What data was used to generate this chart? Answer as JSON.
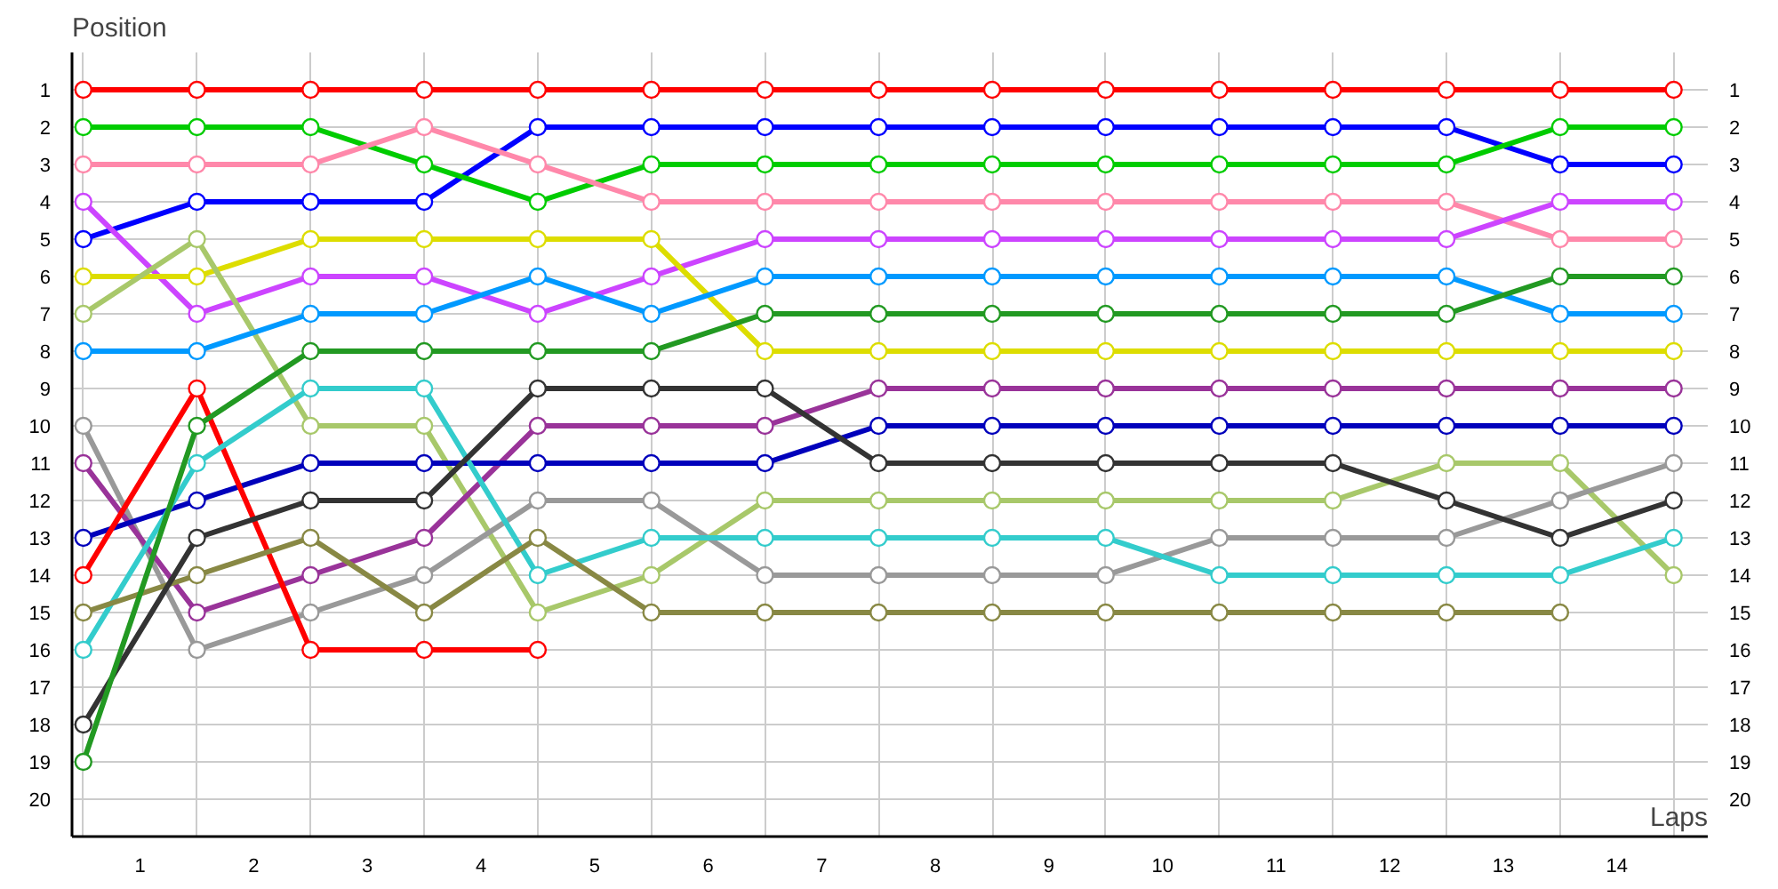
{
  "chart_data": {
    "type": "line",
    "xlabel": "Laps",
    "ylabel": "Position",
    "x": [
      0,
      1,
      2,
      3,
      4,
      5,
      6,
      7,
      8,
      9,
      10,
      11,
      12,
      13,
      14
    ],
    "xlim": [
      -0.1,
      14.3
    ],
    "xticks": [
      {
        "value": 0.5,
        "label": "1"
      },
      {
        "value": 1.5,
        "label": "2"
      },
      {
        "value": 2.5,
        "label": "3"
      },
      {
        "value": 3.5,
        "label": "4"
      },
      {
        "value": 4.5,
        "label": "5"
      },
      {
        "value": 5.5,
        "label": "6"
      },
      {
        "value": 6.5,
        "label": "7"
      },
      {
        "value": 7.5,
        "label": "8"
      },
      {
        "value": 8.5,
        "label": "9"
      },
      {
        "value": 9.5,
        "label": "10"
      },
      {
        "value": 10.5,
        "label": "11"
      },
      {
        "value": 11.5,
        "label": "12"
      },
      {
        "value": 12.5,
        "label": "13"
      },
      {
        "value": 13.5,
        "label": "14"
      }
    ],
    "ylim": [
      21,
      0
    ],
    "yticks": [
      1,
      2,
      3,
      4,
      5,
      6,
      7,
      8,
      9,
      10,
      11,
      12,
      13,
      14,
      15,
      16,
      17,
      18,
      19,
      20
    ],
    "y2lim": [
      21,
      0
    ],
    "y2ticks": [
      1,
      2,
      3,
      4,
      5,
      6,
      7,
      8,
      9,
      10,
      11,
      12,
      13,
      14,
      15,
      16,
      17,
      18,
      19,
      20
    ],
    "grid": true,
    "marker": "circle",
    "line_style": "solid",
    "series": [
      {
        "color": "#ff0000",
        "values": [
          1,
          1,
          1,
          1,
          1,
          1,
          1,
          1,
          1,
          1,
          1,
          1,
          1,
          1,
          1
        ]
      },
      {
        "color": "#0000ff",
        "values": [
          5,
          4,
          4,
          4,
          2,
          2,
          2,
          2,
          2,
          2,
          2,
          2,
          2,
          3,
          3
        ]
      },
      {
        "color": "#00cc00",
        "values": [
          2,
          2,
          2,
          3,
          4,
          3,
          3,
          3,
          3,
          3,
          3,
          3,
          3,
          2,
          2
        ]
      },
      {
        "color": "#ff88aa",
        "values": [
          3,
          3,
          3,
          2,
          3,
          4,
          4,
          4,
          4,
          4,
          4,
          4,
          4,
          5,
          5
        ]
      },
      {
        "color": "#cc44ff",
        "values": [
          4,
          7,
          6,
          6,
          7,
          6,
          5,
          5,
          5,
          5,
          5,
          5,
          5,
          4,
          4
        ]
      },
      {
        "color": "#dddd00",
        "values": [
          6,
          6,
          5,
          5,
          5,
          5,
          8,
          8,
          8,
          8,
          8,
          8,
          8,
          8,
          8
        ]
      },
      {
        "color": "#a8c86a",
        "values": [
          7,
          5,
          10,
          10,
          15,
          14,
          12,
          12,
          12,
          12,
          12,
          12,
          11,
          11,
          14
        ]
      },
      {
        "color": "#0099ff",
        "values": [
          8,
          8,
          7,
          7,
          6,
          7,
          6,
          6,
          6,
          6,
          6,
          6,
          6,
          7,
          7
        ]
      },
      {
        "color": "#999999",
        "values": [
          10,
          16,
          15,
          14,
          12,
          12,
          14,
          14,
          14,
          14,
          13,
          13,
          13,
          12,
          11
        ]
      },
      {
        "color": "#993399",
        "values": [
          11,
          15,
          14,
          13,
          10,
          10,
          10,
          9,
          9,
          9,
          9,
          9,
          9,
          9,
          9
        ]
      },
      {
        "color": "#0000bb",
        "values": [
          13,
          12,
          11,
          11,
          11,
          11,
          11,
          10,
          10,
          10,
          10,
          10,
          10,
          10,
          10
        ]
      },
      {
        "color": "#ff0000",
        "values": [
          14,
          9,
          16,
          16,
          16,
          null,
          null,
          null,
          null,
          null,
          null,
          null,
          null,
          null,
          null
        ]
      },
      {
        "color": "#33cccc",
        "values": [
          16,
          11,
          9,
          9,
          14,
          13,
          13,
          13,
          13,
          13,
          14,
          14,
          14,
          14,
          13
        ]
      },
      {
        "color": "#888844",
        "values": [
          15,
          14,
          13,
          15,
          13,
          15,
          15,
          15,
          15,
          15,
          15,
          15,
          15,
          15,
          null
        ]
      },
      {
        "color": "#333333",
        "values": [
          18,
          13,
          12,
          12,
          9,
          9,
          9,
          11,
          11,
          11,
          11,
          11,
          12,
          13,
          12
        ]
      },
      {
        "color": "#229922",
        "values": [
          19,
          10,
          8,
          8,
          8,
          8,
          7,
          7,
          7,
          7,
          7,
          7,
          7,
          6,
          6
        ]
      }
    ]
  }
}
